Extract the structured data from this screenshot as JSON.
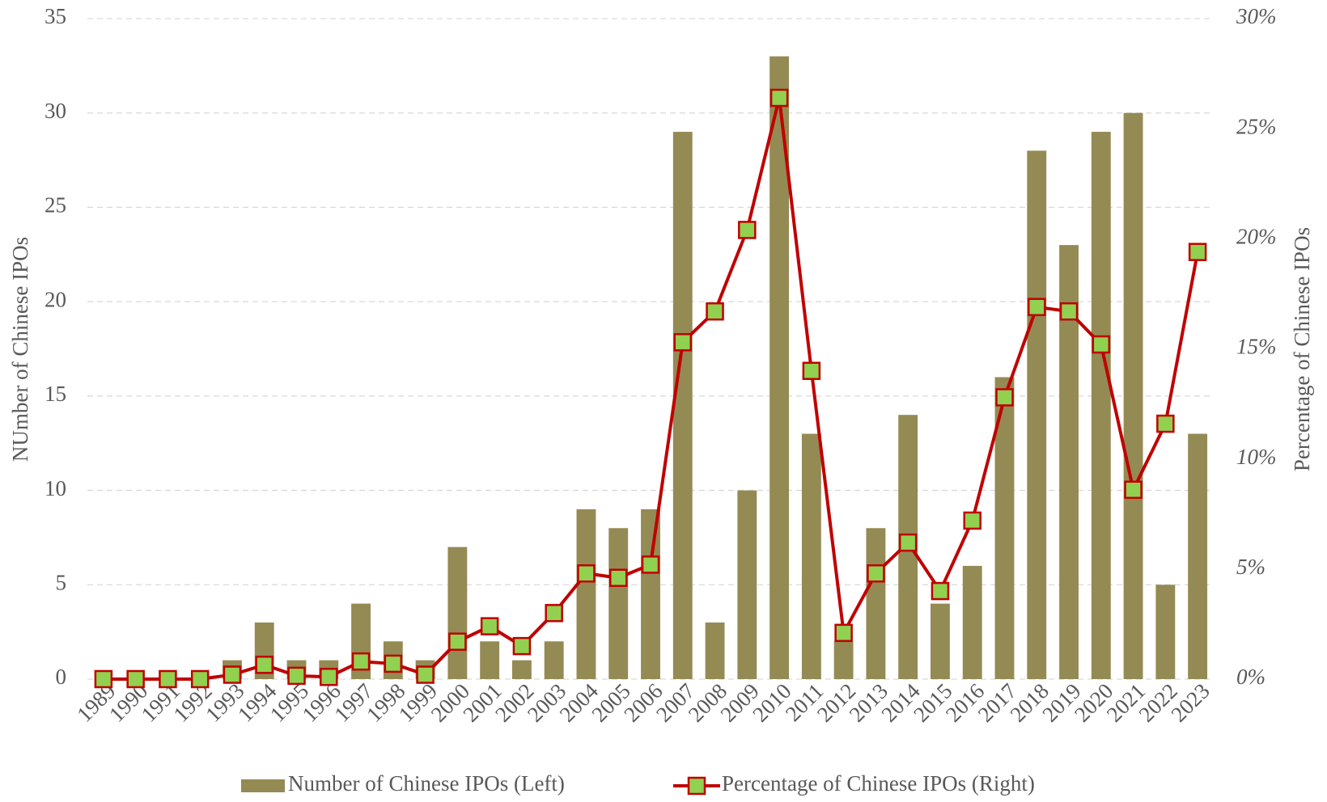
{
  "chart_data": {
    "type": "bar",
    "y_label": "NUmber of Chinese IPOs",
    "y2_label": "Percentage of  Chinese IPOs",
    "categories": [
      "1989",
      "1990",
      "1991",
      "1992",
      "1993",
      "1994",
      "1995",
      "1996",
      "1997",
      "1998",
      "1999",
      "2000",
      "2001",
      "2002",
      "2003",
      "2004",
      "2005",
      "2006",
      "2007",
      "2008",
      "2009",
      "2010",
      "2011",
      "2012",
      "2013",
      "2014",
      "2015",
      "2016",
      "2017",
      "2018",
      "2019",
      "2020",
      "2021",
      "2022",
      "2023"
    ],
    "series": [
      {
        "name": "Number of Chinese IPOs (Left)",
        "type": "bar",
        "color": "#948a54",
        "axis": "y",
        "values": [
          0,
          0,
          0,
          0,
          1,
          3,
          1,
          1,
          4,
          2,
          1,
          7,
          2,
          1,
          2,
          9,
          8,
          9,
          29,
          3,
          10,
          33,
          13,
          2,
          8,
          14,
          4,
          6,
          16,
          28,
          23,
          29,
          30,
          5,
          13
        ]
      },
      {
        "name": "Percentage of Chinese IPOs (Right)",
        "type": "line",
        "color": "#c00000",
        "marker_color": "#92d050",
        "axis": "y2",
        "values": [
          0,
          0,
          0,
          0,
          0.2,
          0.65,
          0.15,
          0.1,
          0.8,
          0.7,
          0.2,
          1.7,
          2.4,
          1.5,
          3.0,
          4.8,
          4.6,
          5.2,
          15.3,
          16.7,
          20.4,
          26.4,
          14.0,
          2.1,
          4.8,
          6.2,
          4.0,
          7.2,
          12.8,
          16.9,
          16.7,
          15.2,
          8.6,
          11.6,
          19.4
        ]
      }
    ],
    "ylim": [
      0,
      35
    ],
    "yticks": [
      0,
      5,
      10,
      15,
      20,
      25,
      30,
      35
    ],
    "y2lim": [
      0,
      30
    ],
    "y2ticks": [
      {
        "value": 0,
        "label": "0%"
      },
      {
        "value": 5,
        "label": "5%"
      },
      {
        "value": 10,
        "label": "10%"
      },
      {
        "value": 15,
        "label": "15%"
      },
      {
        "value": 20,
        "label": "20%"
      },
      {
        "value": 25,
        "label": "25%"
      },
      {
        "value": 30,
        "label": "30%"
      }
    ],
    "grid": true,
    "legend": "bottom"
  }
}
